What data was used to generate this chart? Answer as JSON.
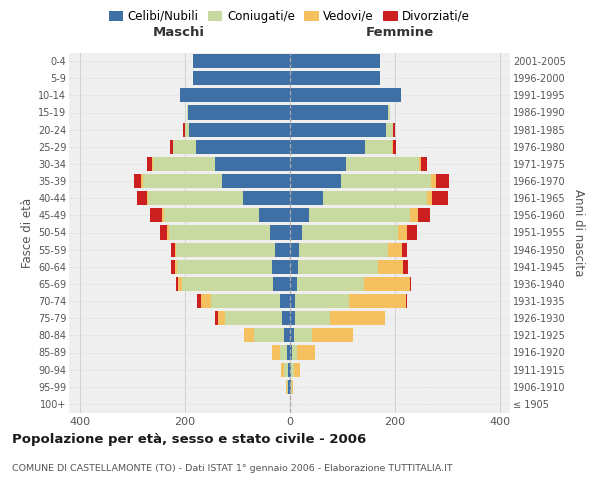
{
  "age_groups": [
    "100+",
    "95-99",
    "90-94",
    "85-89",
    "80-84",
    "75-79",
    "70-74",
    "65-69",
    "60-64",
    "55-59",
    "50-54",
    "45-49",
    "40-44",
    "35-39",
    "30-34",
    "25-29",
    "20-24",
    "15-19",
    "10-14",
    "5-9",
    "0-4"
  ],
  "birth_years": [
    "≤ 1905",
    "1906-1910",
    "1911-1915",
    "1916-1920",
    "1921-1925",
    "1926-1930",
    "1931-1935",
    "1936-1940",
    "1941-1945",
    "1946-1950",
    "1951-1955",
    "1956-1960",
    "1961-1965",
    "1966-1970",
    "1971-1975",
    "1976-1980",
    "1981-1985",
    "1986-1990",
    "1991-1995",
    "1996-2000",
    "2001-2005"
  ],
  "male_celibi": [
    0,
    2,
    3,
    5,
    10,
    15,
    18,
    32,
    33,
    28,
    38,
    58,
    88,
    128,
    142,
    178,
    192,
    193,
    208,
    183,
    183
  ],
  "male_coniugati": [
    0,
    3,
    8,
    14,
    58,
    108,
    132,
    172,
    182,
    188,
    192,
    182,
    182,
    152,
    118,
    43,
    8,
    2,
    0,
    0,
    0
  ],
  "male_vedovi": [
    0,
    2,
    5,
    14,
    18,
    14,
    18,
    9,
    4,
    3,
    3,
    2,
    2,
    2,
    1,
    1,
    0,
    0,
    0,
    0,
    0
  ],
  "male_divorziati": [
    0,
    0,
    0,
    0,
    0,
    5,
    8,
    4,
    7,
    7,
    14,
    24,
    18,
    14,
    11,
    5,
    2,
    0,
    0,
    0,
    0
  ],
  "female_nubili": [
    0,
    2,
    3,
    5,
    8,
    10,
    10,
    14,
    17,
    19,
    24,
    38,
    63,
    98,
    108,
    143,
    183,
    188,
    213,
    173,
    173
  ],
  "female_coniugate": [
    0,
    2,
    5,
    10,
    34,
    68,
    103,
    128,
    152,
    168,
    182,
    192,
    198,
    172,
    138,
    53,
    14,
    3,
    0,
    0,
    0
  ],
  "female_vedove": [
    0,
    3,
    12,
    34,
    78,
    103,
    108,
    88,
    48,
    28,
    18,
    14,
    11,
    9,
    4,
    2,
    1,
    0,
    0,
    0,
    0
  ],
  "female_divorziate": [
    0,
    0,
    0,
    0,
    0,
    0,
    2,
    2,
    8,
    8,
    19,
    24,
    29,
    24,
    11,
    4,
    2,
    0,
    0,
    0,
    0
  ],
  "colors_celibi": "#3e6fa5",
  "colors_coniugati": "#c8daa0",
  "colors_vedovi": "#f5c060",
  "colors_divorziati": "#cc2020",
  "xlim": 420,
  "title": "Popolazione per età, sesso e stato civile - 2006",
  "subtitle": "COMUNE DI CASTELLAMONTE (TO) - Dati ISTAT 1° gennaio 2006 - Elaborazione TUTTITALIA.IT",
  "label_maschi": "Maschi",
  "label_femmine": "Femmine",
  "ylabel_left": "Fasce di età",
  "ylabel_right": "Anni di nascita",
  "legend_labels": [
    "Celibi/Nubili",
    "Coniugati/e",
    "Vedovi/e",
    "Divorziati/e"
  ]
}
